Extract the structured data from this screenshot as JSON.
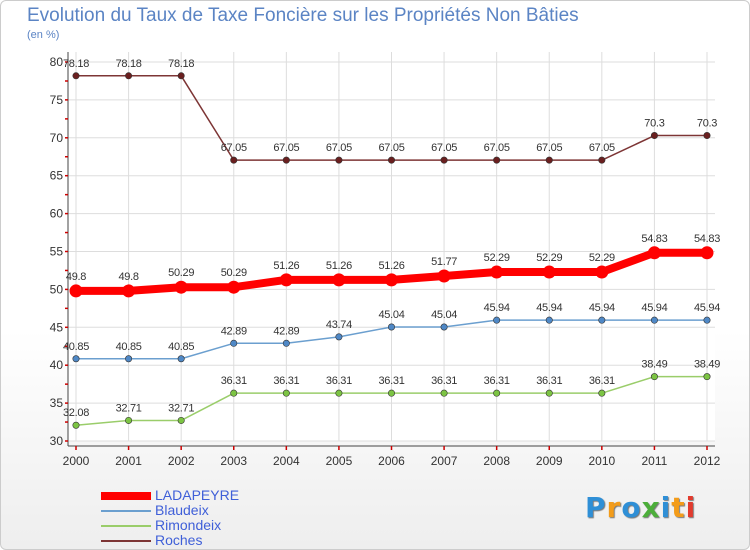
{
  "chart_data": {
    "type": "line",
    "title": "Evolution du Taux de Taxe Foncière sur les Propriétés Non Bâties",
    "subtitle": "(en %)",
    "x": [
      "2000",
      "2001",
      "2002",
      "2003",
      "2004",
      "2005",
      "2006",
      "2007",
      "2008",
      "2009",
      "2010",
      "2011",
      "2012"
    ],
    "ylim": [
      30,
      80
    ],
    "yticks": [
      30,
      35,
      40,
      45,
      50,
      55,
      60,
      65,
      70,
      75,
      80
    ],
    "grid": true,
    "legend_position": "bottom-left",
    "series": [
      {
        "name": "Roches",
        "color": "#7d3535",
        "marker": "#6a1f1f",
        "labels": [
          "78.18",
          "78.18",
          "78.18",
          "67.05",
          "67.05",
          "67.05",
          "67.05",
          "67.05",
          "67.05",
          "67.05",
          "67.05",
          "70.3",
          "70.3"
        ],
        "values": [
          78.18,
          78.18,
          78.18,
          67.05,
          67.05,
          67.05,
          67.05,
          67.05,
          67.05,
          67.05,
          67.05,
          70.3,
          70.3
        ]
      },
      {
        "name": "LADAPEYRE",
        "color": "#ff0000",
        "marker": "#ff0000",
        "labels": [
          "49.8",
          "49.8",
          "50.29",
          "50.29",
          "51.26",
          "51.26",
          "51.26",
          "51.77",
          "52.29",
          "52.29",
          "52.29",
          "54.83",
          "54.83"
        ],
        "values": [
          49.8,
          49.8,
          50.29,
          50.29,
          51.26,
          51.26,
          51.26,
          51.77,
          52.29,
          52.29,
          52.29,
          54.83,
          54.83
        ]
      },
      {
        "name": "Blaudeix",
        "color": "#6b9fcf",
        "marker": "#4f88c6",
        "labels": [
          "40.85",
          "40.85",
          "40.85",
          "42.89",
          "42.89",
          "43.74",
          "45.04",
          "45.04",
          "45.94",
          "45.94",
          "45.94",
          "45.94",
          "45.94"
        ],
        "values": [
          40.85,
          40.85,
          40.85,
          42.89,
          42.89,
          43.74,
          45.04,
          45.04,
          45.94,
          45.94,
          45.94,
          45.94,
          45.94
        ]
      },
      {
        "name": "Rimondeix",
        "color": "#9acd6a",
        "marker": "#7cc443",
        "labels": [
          "32.08",
          "32.71",
          "32.71",
          "36.31",
          "36.31",
          "36.31",
          "36.31",
          "36.31",
          "36.31",
          "36.31",
          "36.31",
          "38.49",
          "38.49"
        ],
        "values": [
          32.08,
          32.71,
          32.71,
          36.31,
          36.31,
          36.31,
          36.31,
          36.31,
          36.31,
          36.31,
          36.31,
          38.49,
          38.49
        ]
      }
    ]
  },
  "legend": [
    {
      "label": "LADAPEYRE",
      "color": "#ff0000",
      "thickness": 8
    },
    {
      "label": "Blaudeix",
      "color": "#6b9fcf",
      "thickness": 2
    },
    {
      "label": "Rimondeix",
      "color": "#9acd6a",
      "thickness": 2
    },
    {
      "label": "Roches",
      "color": "#7d3535",
      "thickness": 2
    }
  ],
  "logo": {
    "letters": [
      "P",
      "r",
      "o",
      "x",
      "i",
      "t",
      "i"
    ],
    "colors": [
      "#2f8fd6",
      "#f39c1a",
      "#2f8fd6",
      "#4cae3a",
      "#2f8fd6",
      "#f39c1a",
      "#e23b2e"
    ]
  }
}
